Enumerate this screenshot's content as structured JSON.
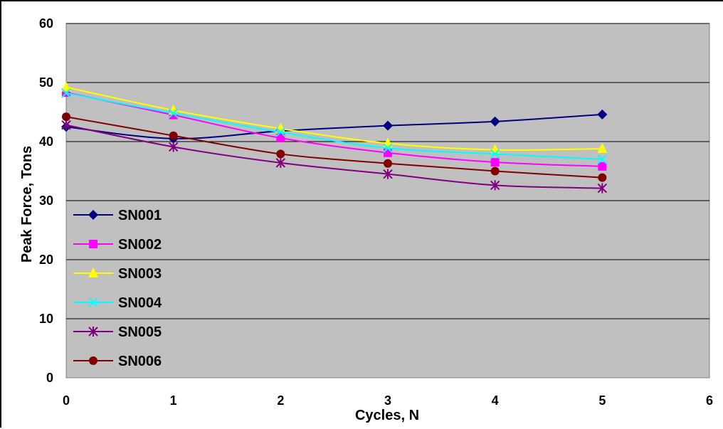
{
  "chart_data": {
    "type": "line",
    "title": "",
    "xlabel": "Cycles, N",
    "ylabel": "Peak Force, Tons",
    "xlim": [
      0,
      6
    ],
    "ylim": [
      0,
      60
    ],
    "x_ticks": [
      "0",
      "1",
      "2",
      "3",
      "4",
      "5",
      "6"
    ],
    "y_ticks": [
      "0",
      "10",
      "20",
      "30",
      "40",
      "50",
      "60"
    ],
    "grid": "horizontal",
    "plot_background": "#c0c0c0",
    "legend_position": "bottom-left",
    "x": [
      0,
      1,
      2,
      3,
      4,
      5
    ],
    "series": [
      {
        "name": "SN001",
        "color": "#000080",
        "marker": "diamond",
        "values": [
          42.5,
          40.5,
          41.8,
          42.7,
          43.4,
          44.6
        ]
      },
      {
        "name": "SN002",
        "color": "#ff00ff",
        "marker": "square",
        "values": [
          48.3,
          44.5,
          40.6,
          38.1,
          36.5,
          35.8
        ]
      },
      {
        "name": "SN003",
        "color": "#ffff00",
        "marker": "triangle",
        "values": [
          49.2,
          45.3,
          42.2,
          39.7,
          38.6,
          38.8
        ]
      },
      {
        "name": "SN004",
        "color": "#00ffff",
        "marker": "x",
        "values": [
          48.2,
          44.8,
          41.6,
          38.9,
          37.9,
          37.0
        ]
      },
      {
        "name": "SN005",
        "color": "#800080",
        "marker": "star",
        "values": [
          42.8,
          39.1,
          36.4,
          34.5,
          32.6,
          32.1
        ]
      },
      {
        "name": "SN006",
        "color": "#800000",
        "marker": "circle",
        "values": [
          44.2,
          41.0,
          37.9,
          36.3,
          35.0,
          33.9
        ]
      }
    ]
  }
}
